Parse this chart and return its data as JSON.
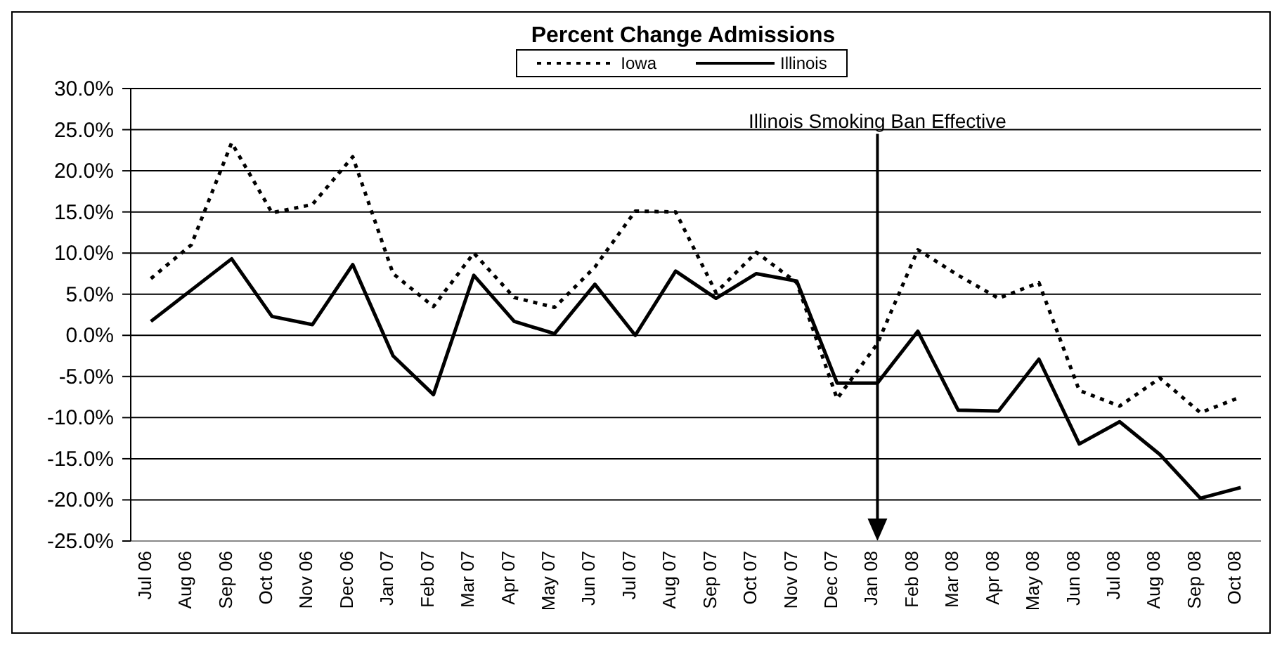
{
  "chart_data": {
    "type": "line",
    "title": "Percent Change Admissions",
    "categories": [
      "Jul 06",
      "Aug 06",
      "Sep 06",
      "Oct 06",
      "Nov 06",
      "Dec 06",
      "Jan 07",
      "Feb 07",
      "Mar 07",
      "Apr 07",
      "May 07",
      "Jun 07",
      "Jul 07",
      "Aug 07",
      "Sep 07",
      "Oct 07",
      "Nov 07",
      "Dec 07",
      "Jan 08",
      "Feb 08",
      "Mar 08",
      "Apr 08",
      "May 08",
      "Jun 08",
      "Jul 08",
      "Aug 08",
      "Sep 08",
      "Oct 08"
    ],
    "series": [
      {
        "name": "Iowa",
        "color": "#000000",
        "line_style": "dotted",
        "values": [
          6.9,
          11,
          23.4,
          14.9,
          15.9,
          21.7,
          7.5,
          3.5,
          10,
          4.6,
          3.4,
          8.3,
          15.1,
          15,
          5.2,
          10.1,
          6.4,
          -7.7,
          -1,
          10.4,
          7.3,
          4.5,
          6.4,
          -6.7,
          -8.6,
          -5.2,
          -9.4,
          -7.5
        ]
      },
      {
        "name": "Illinois",
        "color": "#000000",
        "line_style": "solid",
        "values": [
          1.7,
          5.5,
          9.3,
          2.3,
          1.3,
          8.6,
          -2.5,
          -7.2,
          7.3,
          1.7,
          0.2,
          6.2,
          0,
          7.8,
          4.5,
          7.5,
          6.6,
          -5.8,
          -5.8,
          0.5,
          -9.1,
          -9.2,
          -2.9,
          -13.2,
          -10.5,
          -14.5,
          -19.8,
          -18.5
        ]
      }
    ],
    "ylim": [
      -25,
      30
    ],
    "yticks": [
      {
        "value": -25,
        "label": "-25.0%"
      },
      {
        "value": -20,
        "label": "-20.0%"
      },
      {
        "value": -15,
        "label": "-15.0%"
      },
      {
        "value": -10,
        "label": "-10.0%"
      },
      {
        "value": -5,
        "label": "-5.0%"
      },
      {
        "value": 0,
        "label": "0.0%"
      },
      {
        "value": 5,
        "label": "5.0%"
      },
      {
        "value": 10,
        "label": "10.0%"
      },
      {
        "value": 15,
        "label": "15.0%"
      },
      {
        "value": 20,
        "label": "20.0%"
      },
      {
        "value": 25,
        "label": "25.0%"
      },
      {
        "value": 30,
        "label": "30.0%"
      }
    ],
    "ref_lines": [
      {
        "axis": "x",
        "value": "Jan 08",
        "label": "Illinois Smoking Ban Effective",
        "color": "#000000"
      }
    ],
    "grid": "y",
    "legend": "top",
    "marker": "none"
  }
}
